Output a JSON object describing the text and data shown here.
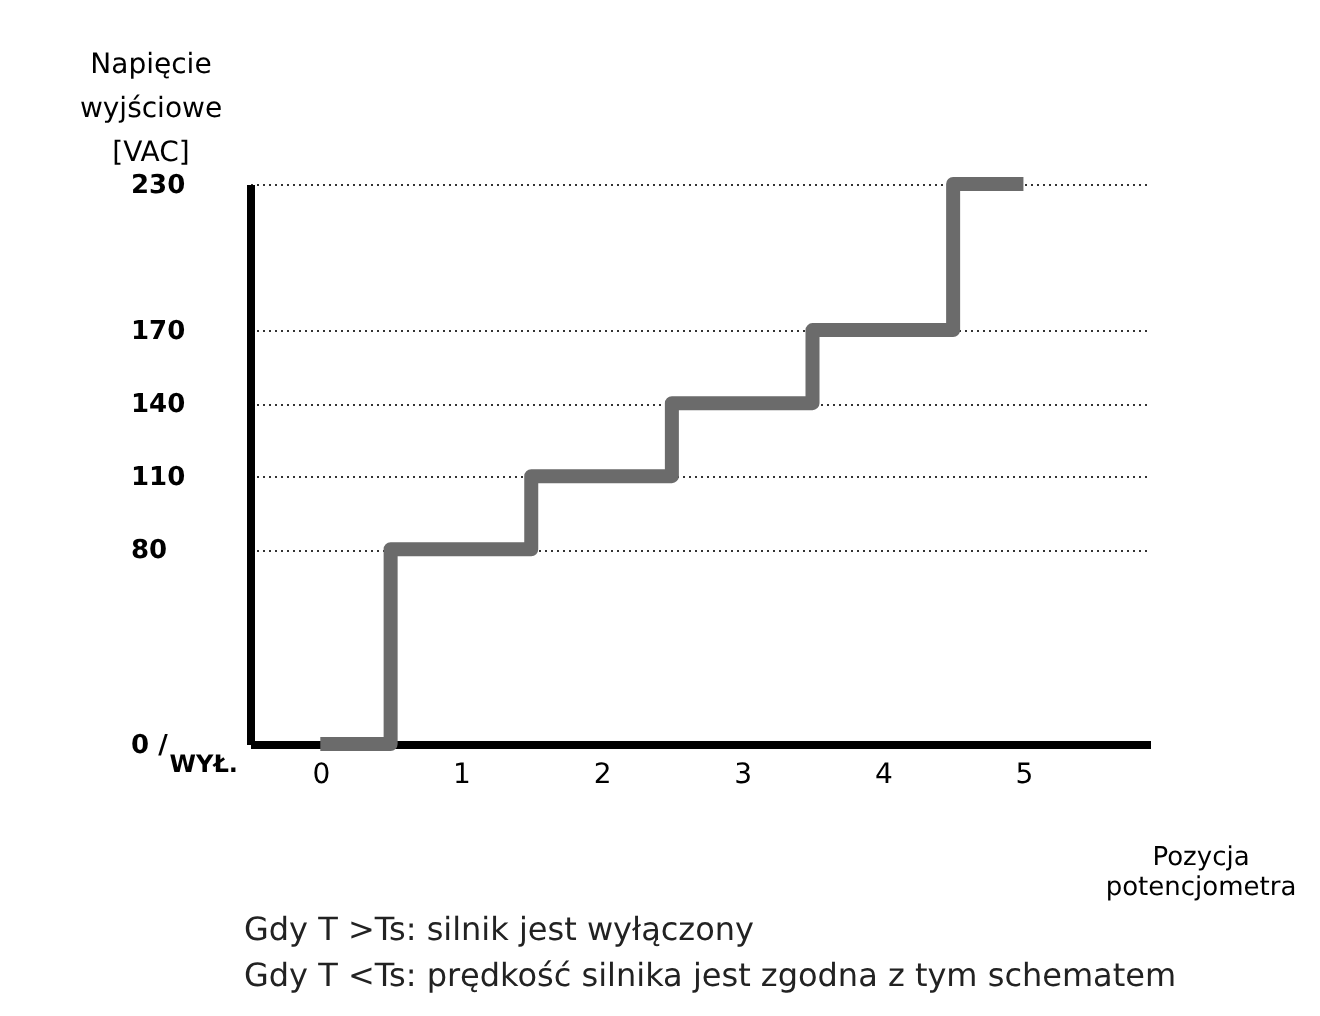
{
  "chart_data": {
    "type": "step",
    "ylabel": "Napięcie wyjściowe [VAC]",
    "xlabel": "Pozycja potencjometra",
    "categories": [
      "0",
      "1",
      "2",
      "3",
      "4",
      "5"
    ],
    "values": [
      0,
      80,
      110,
      140,
      170,
      230
    ],
    "color": "#6b6b6b",
    "ylim": [
      0,
      230
    ],
    "yticks": [
      {
        "value": 0,
        "label": "0 /"
      },
      80,
      110,
      140,
      170,
      230
    ],
    "grid": "y",
    "annotations": [
      "WYŁ.",
      "Gdy T >Ts: silnik jest wyłączony",
      "Gdy T <Ts: prędkość silnika jest zgodna z tym schematem"
    ]
  }
}
